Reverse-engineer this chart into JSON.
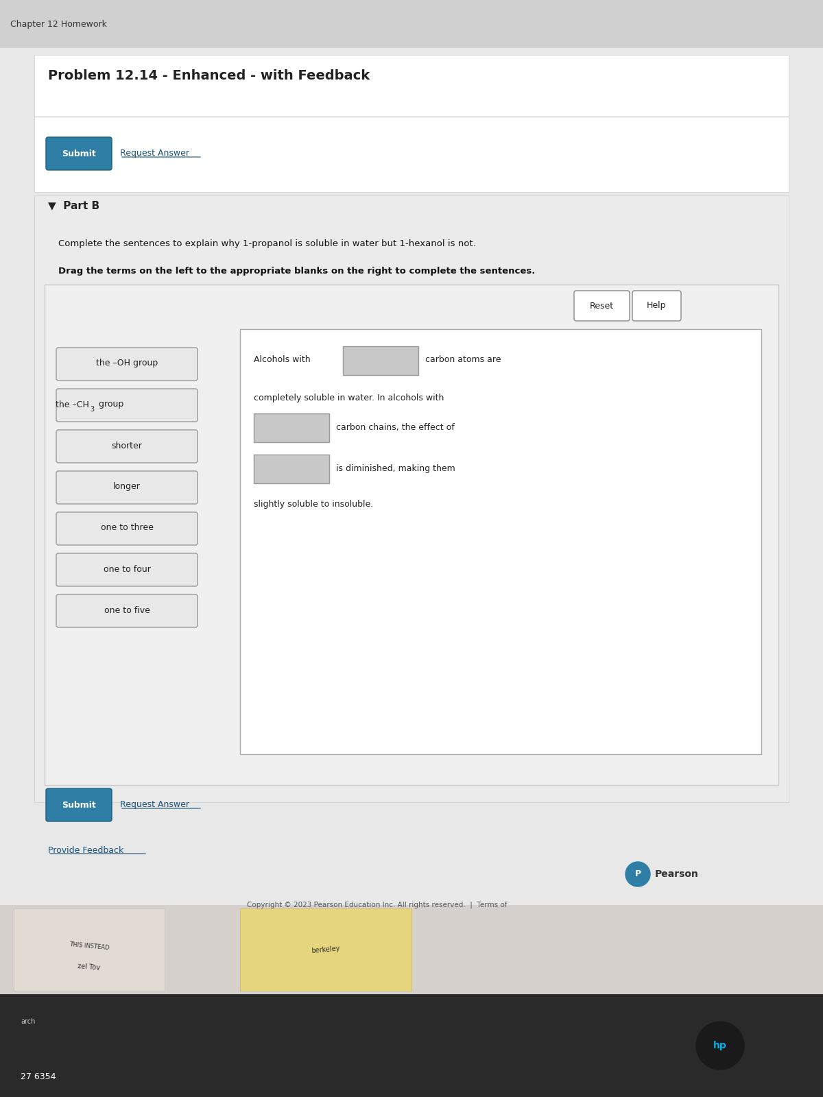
{
  "title": "Problem 12.14 - Enhanced - with Feedback",
  "bg_color": "#e8e8e8",
  "part_b_label": "▼  Part B",
  "instruction1": "Complete the sentences to explain why 1-propanol is soluble in water but 1-hexanol is not.",
  "instruction2": "Drag the terms on the left to the appropriate blanks on the right to complete the sentences.",
  "left_terms": [
    "the –OH group",
    "the –CH3 group",
    "shorter",
    "longer",
    "one to three",
    "one to four",
    "one to five"
  ],
  "submit_btn_color": "#2e7ea6",
  "submit_btn_text": "Submit",
  "request_answer_text": "Request Answer",
  "provide_feedback_text": "Provide Feedback",
  "reset_text": "Reset",
  "help_text": "Help",
  "right_text_1": "Alcohols with",
  "right_text_2": "carbon atoms are",
  "right_text_3": "completely soluble in water. In alcohols with",
  "right_text_4": "carbon chains, the effect of",
  "right_text_5": "is diminished, making them",
  "right_text_6": "slightly soluble to insoluble.",
  "copyright_text": "Copyright © 2023 Pearson Education Inc. All rights reserved.  |  Terms of",
  "pearson_text": "Pearson",
  "chapter_text": "Chapter 12 Homework"
}
